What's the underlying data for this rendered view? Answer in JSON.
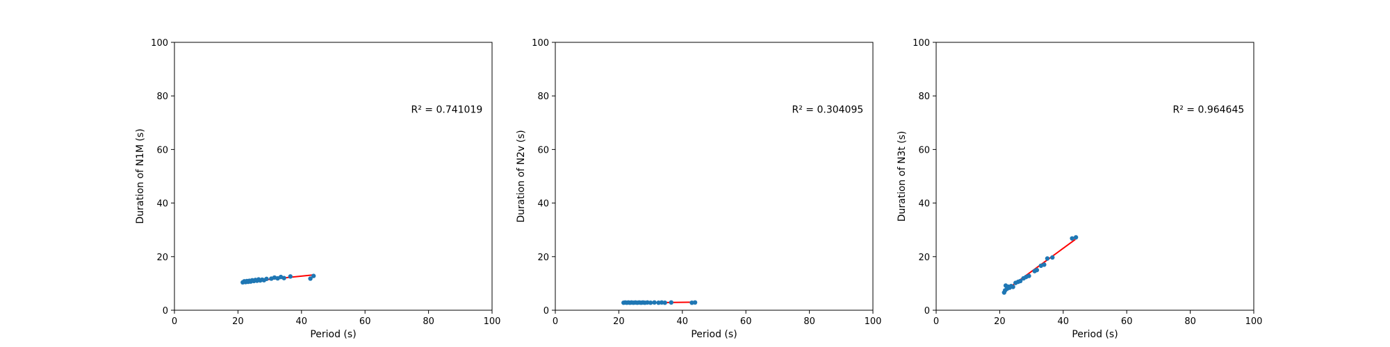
{
  "chart_data": [
    {
      "type": "scatter",
      "xlabel": "Period (s)",
      "ylabel": "Duration of N1M (s)",
      "xlim": [
        0,
        100
      ],
      "ylim": [
        0,
        100
      ],
      "xticks": [
        0,
        20,
        40,
        60,
        80,
        100
      ],
      "yticks": [
        0,
        20,
        40,
        60,
        80,
        100
      ],
      "grid": false,
      "annotation": "R² = 0.741019",
      "point_color": "#1f77b4",
      "fit_color": "#ff0000",
      "points": [
        {
          "x": 21.5,
          "y": 10.4
        },
        {
          "x": 22.0,
          "y": 10.8
        },
        {
          "x": 22.4,
          "y": 10.5
        },
        {
          "x": 22.8,
          "y": 10.9
        },
        {
          "x": 23.2,
          "y": 10.6
        },
        {
          "x": 23.6,
          "y": 11.0
        },
        {
          "x": 24.0,
          "y": 10.7
        },
        {
          "x": 24.5,
          "y": 11.2
        },
        {
          "x": 25.0,
          "y": 10.9
        },
        {
          "x": 25.5,
          "y": 11.3
        },
        {
          "x": 26.0,
          "y": 11.0
        },
        {
          "x": 26.5,
          "y": 11.5
        },
        {
          "x": 27.0,
          "y": 11.1
        },
        {
          "x": 27.6,
          "y": 11.4
        },
        {
          "x": 28.2,
          "y": 11.2
        },
        {
          "x": 29.0,
          "y": 11.7
        },
        {
          "x": 30.5,
          "y": 11.8
        },
        {
          "x": 31.5,
          "y": 12.2
        },
        {
          "x": 32.5,
          "y": 11.9
        },
        {
          "x": 33.5,
          "y": 12.4
        },
        {
          "x": 34.5,
          "y": 12.0
        },
        {
          "x": 36.5,
          "y": 12.6
        },
        {
          "x": 42.8,
          "y": 11.8
        },
        {
          "x": 43.8,
          "y": 12.8
        }
      ],
      "fit": {
        "x": [
          21.5,
          44.0
        ],
        "y": [
          10.5,
          13.2
        ]
      }
    },
    {
      "type": "scatter",
      "xlabel": "Period (s)",
      "ylabel": "Duration of N2v (s)",
      "xlim": [
        0,
        100
      ],
      "ylim": [
        0,
        100
      ],
      "xticks": [
        0,
        20,
        40,
        60,
        80,
        100
      ],
      "yticks": [
        0,
        20,
        40,
        60,
        80,
        100
      ],
      "grid": false,
      "annotation": "R² = 0.304095",
      "point_color": "#1f77b4",
      "fit_color": "#ff0000",
      "points": [
        {
          "x": 21.5,
          "y": 2.8
        },
        {
          "x": 22.0,
          "y": 2.9
        },
        {
          "x": 22.5,
          "y": 2.8
        },
        {
          "x": 23.0,
          "y": 2.9
        },
        {
          "x": 23.5,
          "y": 2.8
        },
        {
          "x": 24.0,
          "y": 2.9
        },
        {
          "x": 24.6,
          "y": 2.8
        },
        {
          "x": 25.2,
          "y": 2.9
        },
        {
          "x": 25.8,
          "y": 2.8
        },
        {
          "x": 26.4,
          "y": 2.9
        },
        {
          "x": 27.0,
          "y": 2.8
        },
        {
          "x": 27.6,
          "y": 2.9
        },
        {
          "x": 28.2,
          "y": 2.8
        },
        {
          "x": 29.0,
          "y": 2.9
        },
        {
          "x": 30.0,
          "y": 2.8
        },
        {
          "x": 31.2,
          "y": 2.9
        },
        {
          "x": 32.5,
          "y": 2.8
        },
        {
          "x": 33.5,
          "y": 2.9
        },
        {
          "x": 34.5,
          "y": 2.8
        },
        {
          "x": 36.5,
          "y": 2.9
        },
        {
          "x": 43.0,
          "y": 2.8
        },
        {
          "x": 44.0,
          "y": 2.9
        }
      ],
      "fit": {
        "x": [
          21.5,
          44.0
        ],
        "y": [
          2.7,
          3.0
        ]
      }
    },
    {
      "type": "scatter",
      "xlabel": "Period (s)",
      "ylabel": "Duration of N3t (s)",
      "xlim": [
        0,
        100
      ],
      "ylim": [
        0,
        100
      ],
      "xticks": [
        0,
        20,
        40,
        60,
        80,
        100
      ],
      "yticks": [
        0,
        20,
        40,
        60,
        80,
        100
      ],
      "grid": false,
      "annotation": "R² = 0.964645",
      "point_color": "#1f77b4",
      "fit_color": "#ff0000",
      "points": [
        {
          "x": 21.4,
          "y": 6.6
        },
        {
          "x": 21.7,
          "y": 7.4
        },
        {
          "x": 21.9,
          "y": 9.2
        },
        {
          "x": 22.3,
          "y": 8.0
        },
        {
          "x": 22.7,
          "y": 8.8
        },
        {
          "x": 23.1,
          "y": 8.4
        },
        {
          "x": 23.6,
          "y": 9.0
        },
        {
          "x": 24.2,
          "y": 8.7
        },
        {
          "x": 25.0,
          "y": 10.2
        },
        {
          "x": 25.8,
          "y": 10.6
        },
        {
          "x": 26.5,
          "y": 10.9
        },
        {
          "x": 27.5,
          "y": 11.9
        },
        {
          "x": 28.3,
          "y": 12.4
        },
        {
          "x": 29.2,
          "y": 12.8
        },
        {
          "x": 31.0,
          "y": 14.6
        },
        {
          "x": 31.7,
          "y": 15.0
        },
        {
          "x": 33.0,
          "y": 16.6
        },
        {
          "x": 34.0,
          "y": 17.0
        },
        {
          "x": 35.0,
          "y": 19.3
        },
        {
          "x": 36.6,
          "y": 19.7
        },
        {
          "x": 42.8,
          "y": 26.8
        },
        {
          "x": 44.0,
          "y": 27.2
        }
      ],
      "fit": {
        "x": [
          21.4,
          43.8
        ],
        "y": [
          7.0,
          26.4
        ]
      }
    }
  ]
}
